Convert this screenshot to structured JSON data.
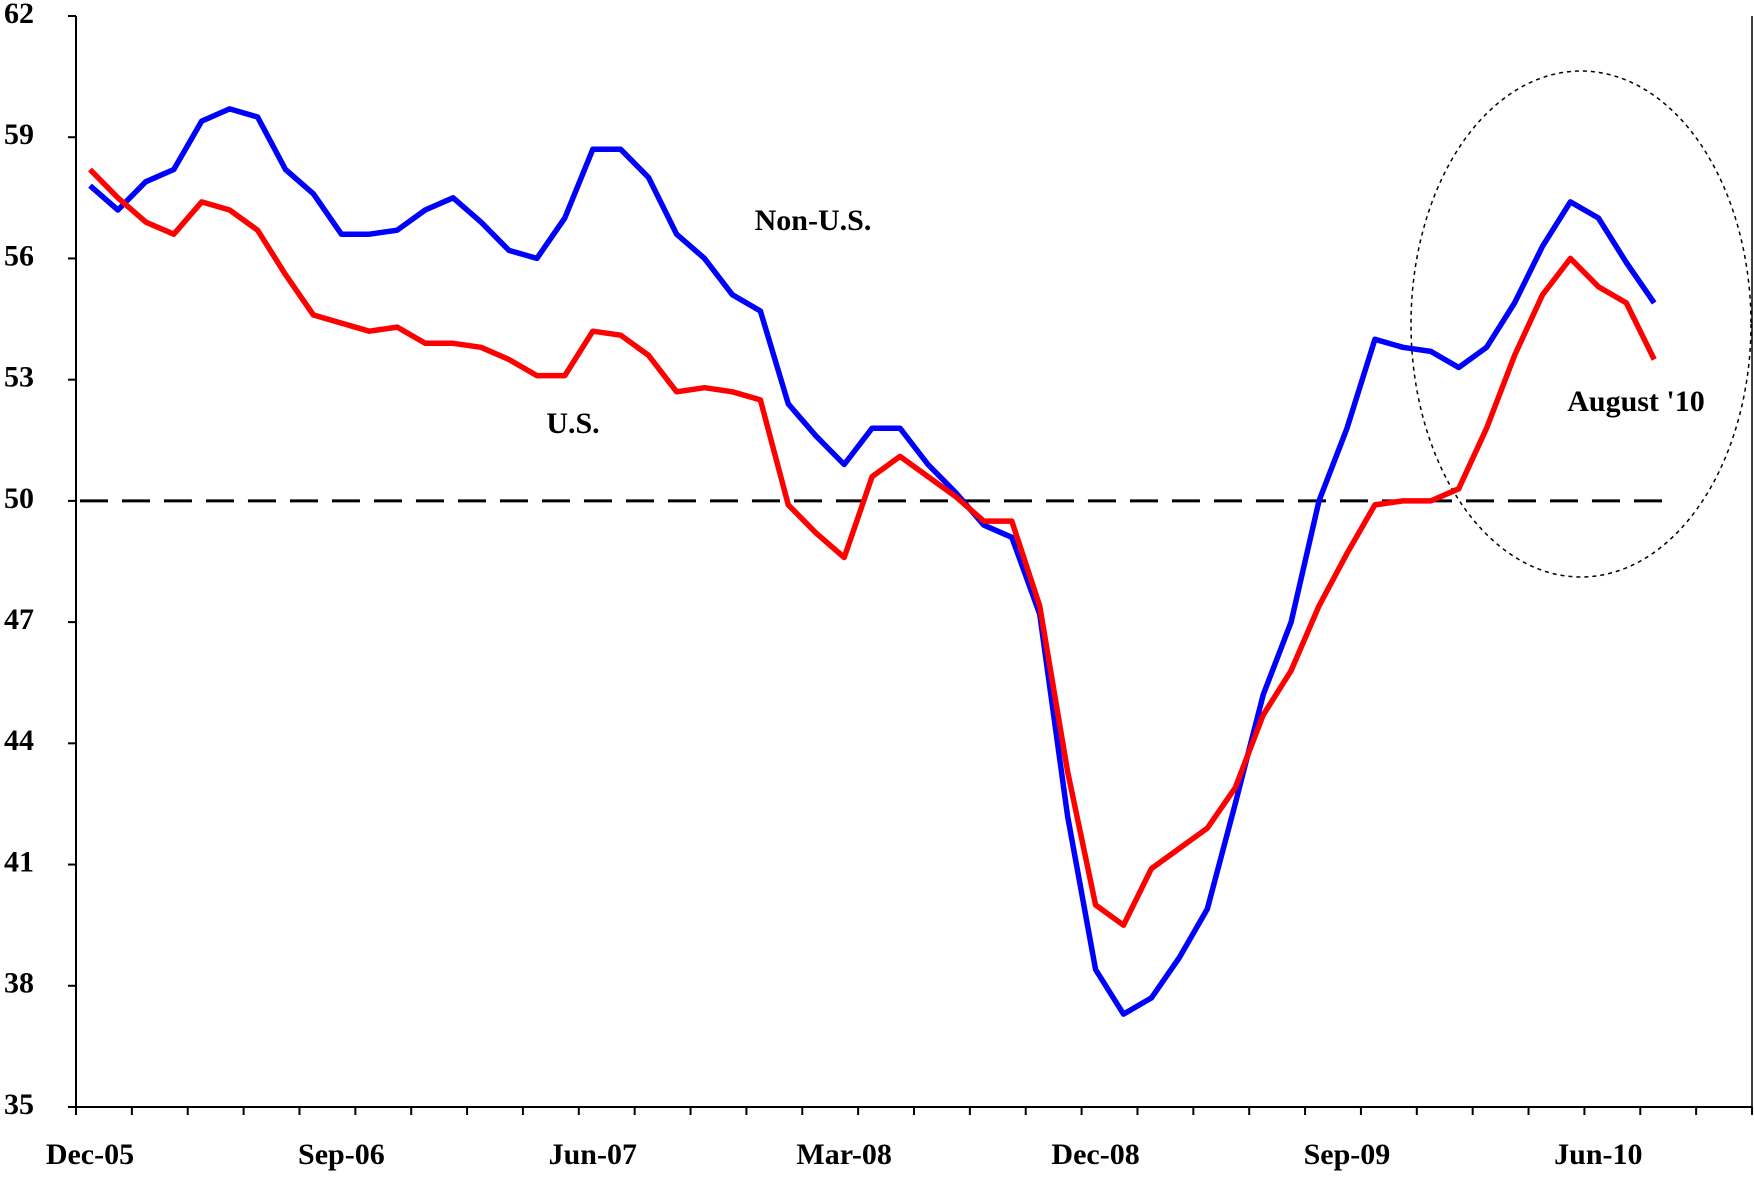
{
  "chart_data": {
    "type": "line",
    "categories": [
      "Dec-05",
      null,
      null,
      null,
      null,
      null,
      null,
      null,
      null,
      "Sep-06",
      null,
      null,
      null,
      null,
      null,
      null,
      null,
      null,
      "Jun-07",
      null,
      null,
      null,
      null,
      null,
      null,
      null,
      null,
      "Mar-08",
      null,
      null,
      null,
      null,
      null,
      null,
      null,
      null,
      "Dec-08",
      null,
      null,
      null,
      null,
      null,
      null,
      null,
      null,
      "Sep-09",
      null,
      null,
      null,
      null,
      null,
      null,
      null,
      null,
      "Jun-10",
      null,
      null,
      null,
      null,
      null
    ],
    "series": [
      {
        "name": "Non-U.S.",
        "color": "#0000ff",
        "values": [
          57.8,
          57.2,
          57.9,
          58.2,
          59.4,
          59.7,
          59.5,
          58.2,
          57.6,
          56.6,
          56.6,
          56.7,
          57.2,
          57.5,
          56.9,
          56.2,
          56.0,
          57.0,
          58.7,
          58.7,
          58.0,
          56.6,
          56.0,
          55.1,
          54.7,
          52.4,
          51.6,
          50.9,
          51.8,
          51.8,
          50.9,
          50.2,
          49.4,
          49.1,
          47.2,
          42.2,
          38.4,
          37.3,
          37.7,
          38.7,
          39.9,
          42.5,
          45.2,
          47.0,
          50.0,
          51.8,
          54.0,
          53.8,
          53.7,
          53.3,
          53.8,
          54.9,
          56.3,
          57.4,
          57.0,
          55.9,
          54.9,
          null,
          null,
          null
        ]
      },
      {
        "name": "U.S.",
        "color": "#ff0000",
        "values": [
          58.2,
          57.5,
          56.9,
          56.6,
          57.4,
          57.2,
          56.7,
          55.6,
          54.6,
          54.4,
          54.2,
          54.3,
          53.9,
          53.9,
          53.8,
          53.5,
          53.1,
          53.1,
          54.2,
          54.1,
          53.6,
          52.7,
          52.8,
          52.7,
          52.5,
          49.9,
          49.2,
          48.6,
          50.6,
          51.1,
          50.6,
          50.1,
          49.5,
          49.5,
          47.4,
          43.3,
          40.0,
          39.5,
          40.9,
          41.4,
          41.9,
          42.9,
          44.7,
          45.8,
          47.4,
          48.7,
          49.9,
          50.0,
          50.0,
          50.3,
          51.8,
          53.6,
          55.1,
          56.0,
          55.3,
          54.9,
          53.5,
          null,
          null,
          null
        ]
      }
    ],
    "annotations": [
      "August '10"
    ],
    "reference_line": 50,
    "ylim": [
      35,
      62
    ],
    "yticks": [
      35,
      38,
      41,
      44,
      47,
      50,
      53,
      56,
      59,
      62
    ]
  }
}
